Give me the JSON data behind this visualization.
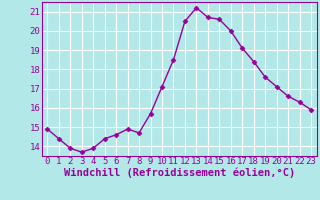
{
  "x": [
    0,
    1,
    2,
    3,
    4,
    5,
    6,
    7,
    8,
    9,
    10,
    11,
    12,
    13,
    14,
    15,
    16,
    17,
    18,
    19,
    20,
    21,
    22,
    23
  ],
  "y": [
    14.9,
    14.4,
    13.9,
    13.7,
    13.9,
    14.4,
    14.6,
    14.9,
    14.7,
    15.7,
    17.1,
    18.5,
    20.5,
    21.2,
    20.7,
    20.6,
    20.0,
    19.1,
    18.4,
    17.6,
    17.1,
    16.6,
    16.3,
    15.9
  ],
  "line_color": "#990099",
  "marker": "D",
  "marker_size": 2.5,
  "bg_color": "#b2e8e8",
  "grid_color": "#ffffff",
  "xlabel": "Windchill (Refroidissement éolien,°C)",
  "xlabel_color": "#990099",
  "tick_color": "#990099",
  "spine_color": "#990099",
  "ylim": [
    13.5,
    21.5
  ],
  "xlim": [
    -0.5,
    23.5
  ],
  "yticks": [
    14,
    15,
    16,
    17,
    18,
    19,
    20,
    21
  ],
  "xticks": [
    0,
    1,
    2,
    3,
    4,
    5,
    6,
    7,
    8,
    9,
    10,
    11,
    12,
    13,
    14,
    15,
    16,
    17,
    18,
    19,
    20,
    21,
    22,
    23
  ],
  "tick_fontsize": 6.5,
  "xlabel_fontsize": 7.5,
  "linewidth": 1.0
}
